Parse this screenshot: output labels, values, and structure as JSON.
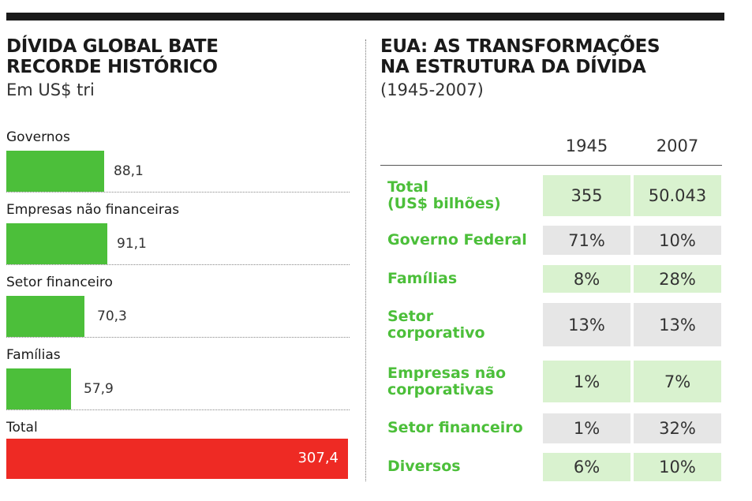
{
  "left": {
    "title_line1": "DÍVIDA GLOBAL BATE",
    "title_line2": "RECORDE HISTÓRICO",
    "subtitle": "Em US$ tri"
  },
  "right": {
    "title_line1": "EUA: AS TRANSFORMAÇÕES",
    "title_line2": "NA ESTRUTURA DA DÍVIDA",
    "subtitle": "(1945-2007)"
  },
  "colors": {
    "bar": "#4cbf3a",
    "total_bar": "#ee2a24",
    "label_green": "#4cbf3a",
    "cell_green": "#d9f2cf",
    "cell_gray": "#e6e6e6"
  },
  "chart_data": [
    {
      "type": "bar",
      "orientation": "horizontal",
      "title": "DÍVIDA GLOBAL BATE RECORDE HISTÓRICO",
      "subtitle": "Em US$ tri",
      "categories": [
        "Governos",
        "Empresas não financeiras",
        "Setor financeiro",
        "Famílias",
        "Total"
      ],
      "values": [
        88.1,
        91.1,
        70.3,
        57.9,
        307.4
      ],
      "value_labels": [
        "88,1",
        "91,1",
        "70,3",
        "57,9",
        "307,4"
      ],
      "xlim": [
        0,
        307.4
      ]
    },
    {
      "type": "table",
      "title": "EUA: AS TRANSFORMAÇÕES NA ESTRUTURA DA DÍVIDA",
      "subtitle": "(1945-2007)",
      "columns": [
        "",
        "1945",
        "2007"
      ],
      "rows": [
        {
          "label1": "Total",
          "label2": "(US$ bilhões)",
          "v1945": "355",
          "v2007": "50.043"
        },
        {
          "label1": "Governo Federal",
          "label2": "",
          "v1945": "71%",
          "v2007": "10%"
        },
        {
          "label1": "Famílias",
          "label2": "",
          "v1945": "8%",
          "v2007": "28%"
        },
        {
          "label1": "Setor",
          "label2": "corporativo",
          "v1945": "13%",
          "v2007": "13%"
        },
        {
          "label1": "Empresas não",
          "label2": "corporativas",
          "v1945": "1%",
          "v2007": "7%"
        },
        {
          "label1": "Setor financeiro",
          "label2": "",
          "v1945": "1%",
          "v2007": "32%"
        },
        {
          "label1": "Diversos",
          "label2": "",
          "v1945": "6%",
          "v2007": "10%"
        }
      ]
    }
  ]
}
